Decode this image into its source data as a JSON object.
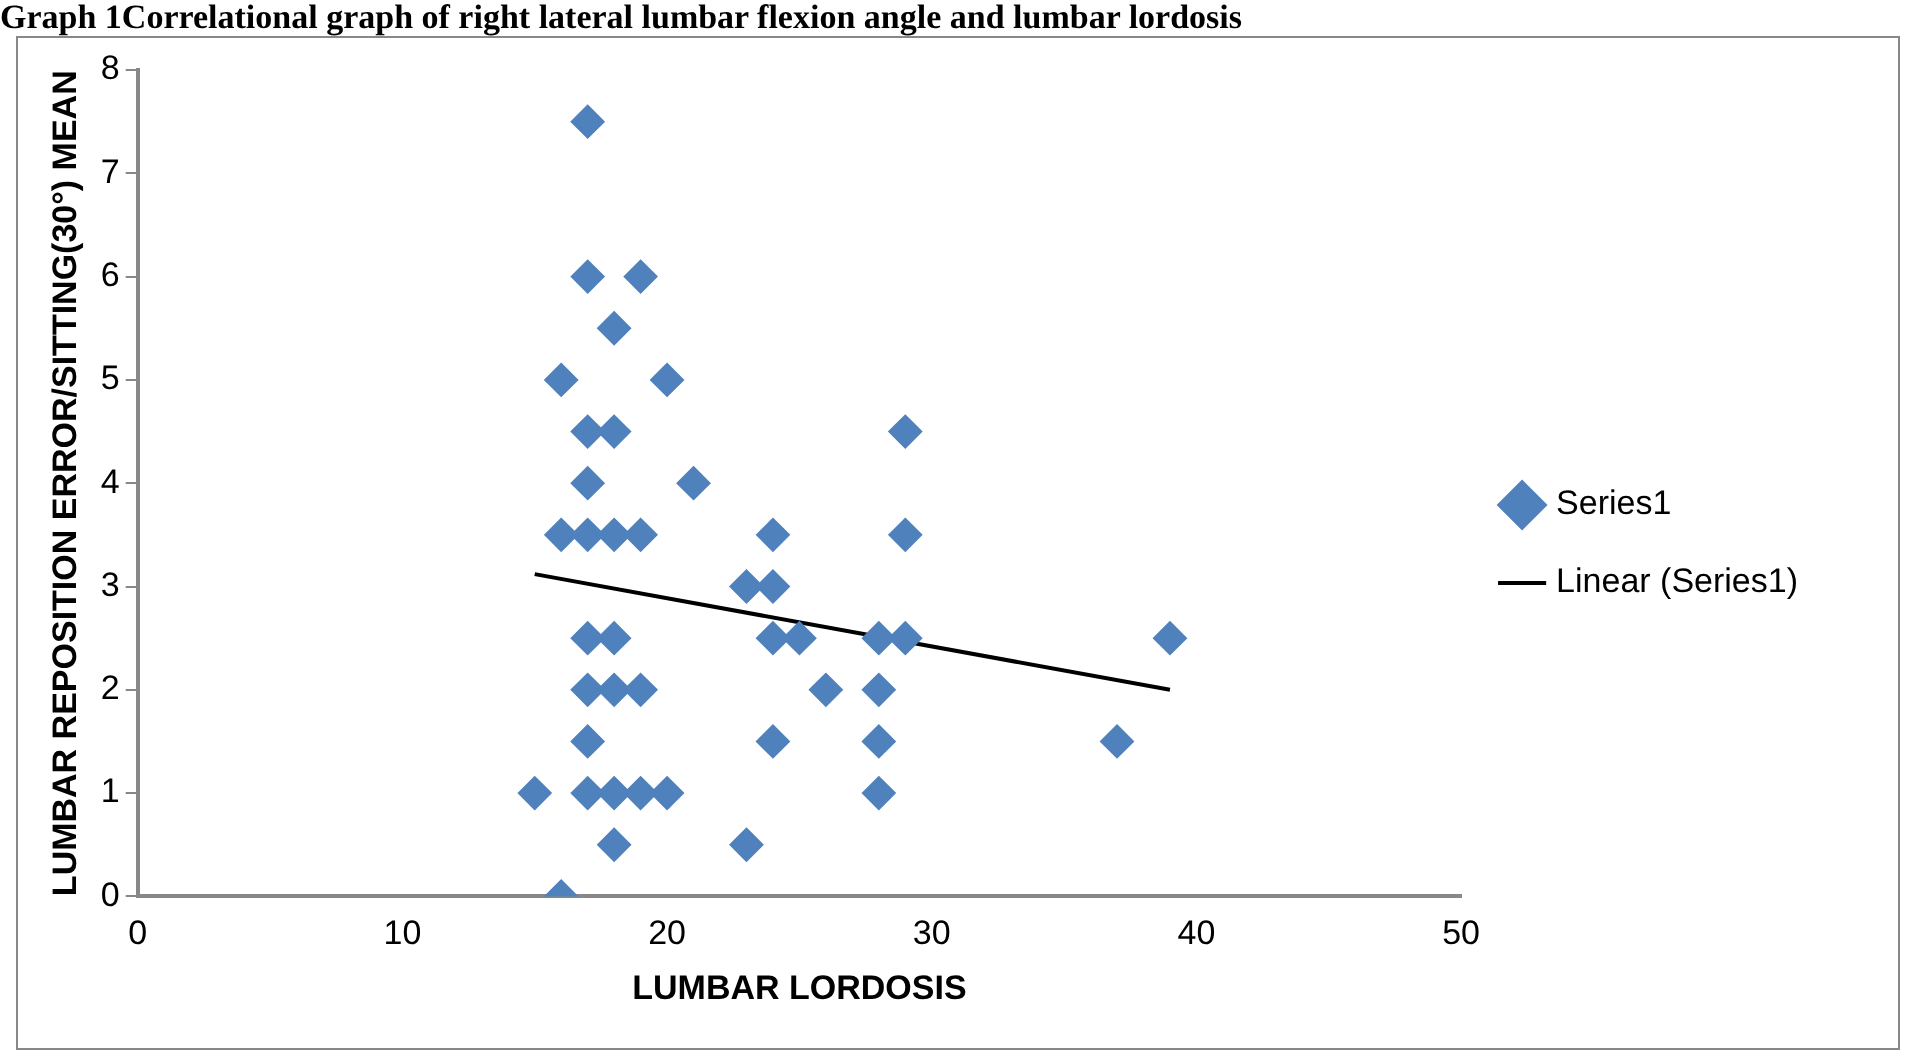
{
  "chart_data": {
    "type": "scatter",
    "title": "Graph 1Correlational graph of right lateral lumbar flexion angle and lumbar lordosis",
    "xlabel": "LUMBAR LORDOSIS",
    "ylabel": "LUMBAR REPOSITION ERROR/SITTING(30°) MEAN",
    "xlim": [
      0,
      50
    ],
    "xticks": [
      0,
      10,
      20,
      30,
      40,
      50
    ],
    "ylim": [
      0,
      8
    ],
    "yticks": [
      0,
      1,
      2,
      3,
      4,
      5,
      6,
      7,
      8
    ],
    "grid": false,
    "legend": "right",
    "series": [
      {
        "name": "Series1",
        "color": "#4f81bd",
        "marker": "diamond",
        "x": [
          15,
          16,
          16,
          16,
          17,
          17,
          17,
          17,
          17,
          17,
          17,
          17,
          17,
          18,
          18,
          18,
          18,
          18,
          18,
          18,
          19,
          19,
          19,
          19,
          20,
          20,
          21,
          23,
          23,
          24,
          24,
          24,
          24,
          25,
          26,
          28,
          28,
          28,
          28,
          29,
          29,
          29,
          37,
          39
        ],
        "values": [
          1,
          5,
          3.5,
          0,
          7.5,
          6,
          4.5,
          4,
          3.5,
          2.5,
          2,
          1.5,
          1,
          5.5,
          4.5,
          3.5,
          2.5,
          2,
          1,
          0.5,
          6,
          3.5,
          2,
          1,
          5,
          1,
          4,
          3,
          0.5,
          3.5,
          3,
          2.5,
          1.5,
          2.5,
          2,
          2.5,
          2,
          1.5,
          1,
          4.5,
          3.5,
          2.5,
          1.5,
          2.5
        ]
      },
      {
        "name": "Linear (Series1)",
        "type": "line",
        "marker": "none",
        "color": "#000000",
        "x": [
          15,
          39
        ],
        "values": [
          3.12,
          2.0
        ]
      }
    ]
  }
}
